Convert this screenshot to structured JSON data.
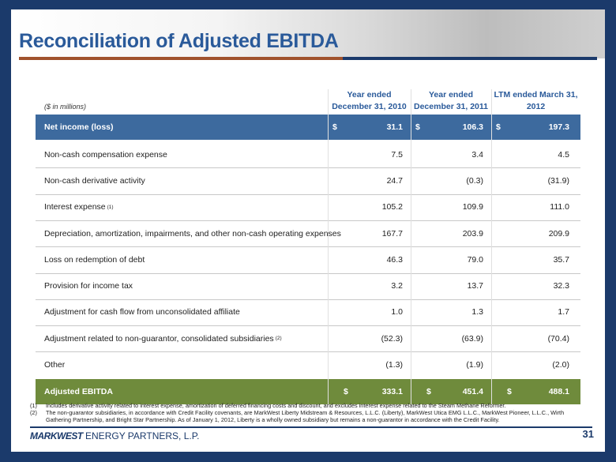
{
  "header": {
    "title": "Reconciliation of Adjusted EBITDA"
  },
  "table": {
    "note": "($ in millions)",
    "columns": [
      "Year ended December 31, 2010",
      "Year ended December 31, 2011",
      "LTM ended March 31, 2012"
    ],
    "rows": [
      {
        "label": "Net income (loss)",
        "currency": "$",
        "values": [
          "31.1",
          "106.3",
          "197.3"
        ]
      },
      {
        "label": "Non-cash compensation expense",
        "values": [
          "7.5",
          "3.4",
          "4.5"
        ]
      },
      {
        "label": "Non-cash derivative activity",
        "values": [
          "24.7",
          "(0.3)",
          "(31.9)"
        ]
      },
      {
        "label": "Interest expense",
        "footnote": "(1)",
        "values": [
          "105.2",
          "109.9",
          "111.0"
        ]
      },
      {
        "label": "Depreciation, amortization, impairments, and other non-cash operating expenses",
        "values": [
          "167.7",
          "203.9",
          "209.9"
        ]
      },
      {
        "label": "Loss on redemption of debt",
        "values": [
          "46.3",
          "79.0",
          "35.7"
        ]
      },
      {
        "label": "Provision for income tax",
        "values": [
          "3.2",
          "13.7",
          "32.3"
        ]
      },
      {
        "label": "Adjustment for cash flow from unconsolidated affiliate",
        "values": [
          "1.0",
          "1.3",
          "1.7"
        ]
      },
      {
        "label": "Adjustment related to non-guarantor, consolidated subsidiaries",
        "footnote": "(2)",
        "values": [
          "(52.3)",
          "(63.9)",
          "(70.4)"
        ]
      },
      {
        "label": "Other",
        "values": [
          "(1.3)",
          "(1.9)",
          "(2.0)"
        ]
      },
      {
        "label": "Adjusted EBITDA",
        "currency": "$",
        "values": [
          "333.1",
          "451.4",
          "488.1"
        ]
      }
    ]
  },
  "footnotes": [
    {
      "marker": "(1)",
      "text": "Includes derivative activity related to interest expense, amortization of deferred financing costs and discount, and excludes interest expense related to the Steam Methane Reformer."
    },
    {
      "marker": "(2)",
      "text": "The non-guarantor subsidiaries, in accordance with Credit Facility covenants, are MarkWest Liberty Midstream & Resources, L.L.C. (Liberty), MarkWest Utica EMG L.L.C., MarkWest Pioneer, L.L.C., Wirth Gathering Partnership, and Bright Star Partnership.  As of January 1, 2012, Liberty is a wholly owned subsidiary but remains a non-guarantor in accordance with the Credit Facility."
    }
  ],
  "footer": {
    "company_mark": "MARKWEST",
    "company_rest": "ENERGY PARTNERS, L.P.",
    "page": "31"
  }
}
